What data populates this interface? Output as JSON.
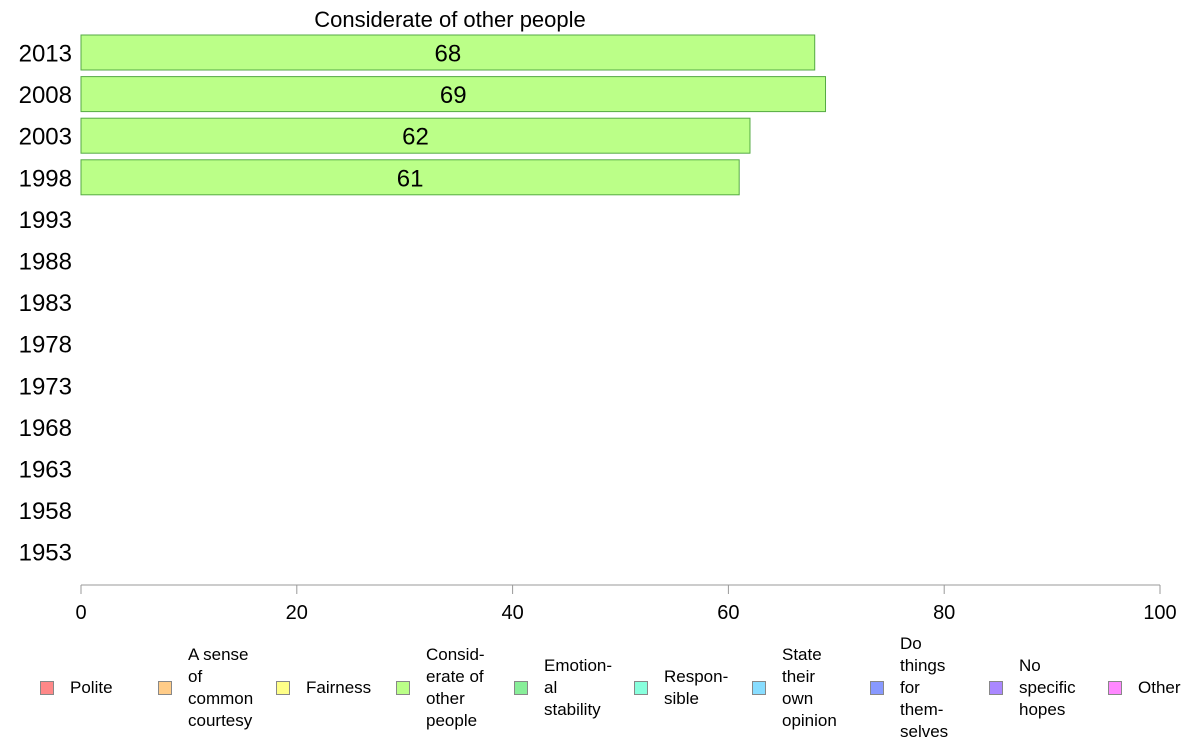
{
  "chart_data": {
    "type": "bar",
    "orientation": "horizontal",
    "title": "Considerate of other people",
    "categories": [
      "2013",
      "2008",
      "2003",
      "1998",
      "1993",
      "1988",
      "1983",
      "1978",
      "1973",
      "1968",
      "1963",
      "1958",
      "1953"
    ],
    "values": [
      68,
      69,
      62,
      61,
      null,
      null,
      null,
      null,
      null,
      null,
      null,
      null,
      null
    ],
    "data_labels": [
      "68",
      "69",
      "62",
      "61",
      "",
      "",
      "",
      "",
      "",
      "",
      "",
      "",
      ""
    ],
    "bar_color": "#bbff88",
    "bar_stroke": "#55aa44",
    "xlim": [
      0,
      100
    ],
    "xticks": [
      "0",
      "20",
      "40",
      "60",
      "80",
      "100"
    ],
    "xlabel": "",
    "ylabel": "",
    "grid": false,
    "legend_position": "bottom",
    "legend": [
      {
        "label": "Polite",
        "color": "#ff8888"
      },
      {
        "label": "A sense\nof\ncommon\ncourtesy",
        "color": "#ffcc88"
      },
      {
        "label": "Fairness",
        "color": "#ffff88"
      },
      {
        "label": "Consid-\nerate of\nother\npeople",
        "color": "#bbff88"
      },
      {
        "label": "Emotion-\nal\nstability",
        "color": "#88ee99"
      },
      {
        "label": "Respon-\nsible",
        "color": "#88ffdd"
      },
      {
        "label": "State\ntheir\nown\nopinion",
        "color": "#88ddff"
      },
      {
        "label": "Do\nthings\nfor\nthem-\nselves",
        "color": "#8899ff"
      },
      {
        "label": "No\nspecific\nhopes",
        "color": "#aa88ff"
      },
      {
        "label": "Other",
        "color": "#ff88ff"
      }
    ]
  }
}
